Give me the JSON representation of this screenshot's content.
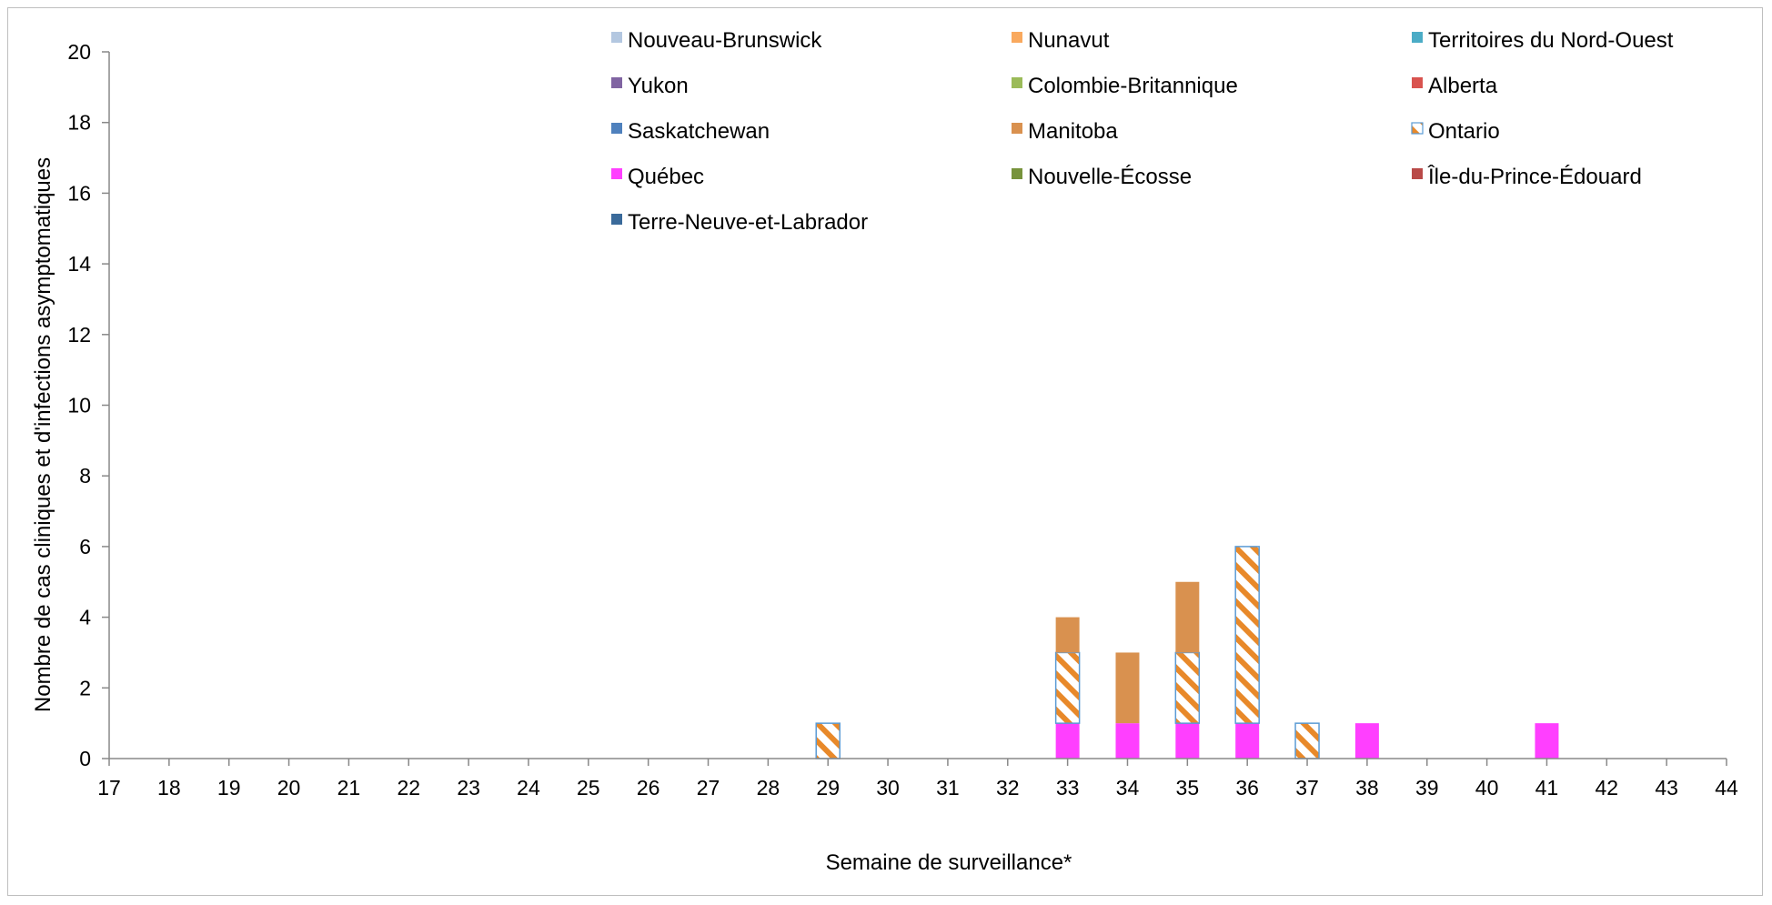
{
  "chart_data": {
    "type": "bar",
    "stacked": true,
    "xlabel": "Semaine de surveillance*",
    "ylabel": "Nombre de cas cliniques et d'infections asymptomatiques",
    "ylim": [
      0,
      20
    ],
    "yticks": [
      "0",
      "2",
      "4",
      "6",
      "8",
      "10",
      "12",
      "14",
      "16",
      "18",
      "20"
    ],
    "categories": [
      "17",
      "18",
      "19",
      "20",
      "21",
      "22",
      "23",
      "24",
      "25",
      "26",
      "27",
      "28",
      "29",
      "30",
      "31",
      "32",
      "33",
      "34",
      "35",
      "36",
      "37",
      "38",
      "39",
      "40",
      "41",
      "42",
      "43",
      "44"
    ],
    "legend_position": "top",
    "series": [
      {
        "name": "Nouveau-Brunswick",
        "color": "#b3c7e0",
        "pattern": "solid",
        "values": [
          0,
          0,
          0,
          0,
          0,
          0,
          0,
          0,
          0,
          0,
          0,
          0,
          0,
          0,
          0,
          0,
          0,
          0,
          0,
          0,
          0,
          0,
          0,
          0,
          0,
          0,
          0,
          0
        ]
      },
      {
        "name": "Nunavut",
        "color": "#f9a95e",
        "pattern": "solid",
        "values": [
          0,
          0,
          0,
          0,
          0,
          0,
          0,
          0,
          0,
          0,
          0,
          0,
          0,
          0,
          0,
          0,
          0,
          0,
          0,
          0,
          0,
          0,
          0,
          0,
          0,
          0,
          0,
          0
        ]
      },
      {
        "name": "Territoires du Nord-Ouest",
        "color": "#4bacc6",
        "pattern": "solid",
        "values": [
          0,
          0,
          0,
          0,
          0,
          0,
          0,
          0,
          0,
          0,
          0,
          0,
          0,
          0,
          0,
          0,
          0,
          0,
          0,
          0,
          0,
          0,
          0,
          0,
          0,
          0,
          0,
          0
        ]
      },
      {
        "name": "Yukon",
        "color": "#8064a2",
        "pattern": "solid",
        "values": [
          0,
          0,
          0,
          0,
          0,
          0,
          0,
          0,
          0,
          0,
          0,
          0,
          0,
          0,
          0,
          0,
          0,
          0,
          0,
          0,
          0,
          0,
          0,
          0,
          0,
          0,
          0,
          0
        ]
      },
      {
        "name": "Colombie-Britannique",
        "color": "#9bbb59",
        "pattern": "solid",
        "values": [
          0,
          0,
          0,
          0,
          0,
          0,
          0,
          0,
          0,
          0,
          0,
          0,
          0,
          0,
          0,
          0,
          0,
          0,
          0,
          0,
          0,
          0,
          0,
          0,
          0,
          0,
          0,
          0
        ]
      },
      {
        "name": "Alberta",
        "color": "#d9534f",
        "pattern": "solid",
        "values": [
          0,
          0,
          0,
          0,
          0,
          0,
          0,
          0,
          0,
          0,
          0,
          0,
          0,
          0,
          0,
          0,
          0,
          0,
          0,
          0,
          0,
          0,
          0,
          0,
          0,
          0,
          0,
          0
        ]
      },
      {
        "name": "Saskatchewan",
        "color": "#4f81bd",
        "pattern": "solid",
        "values": [
          0,
          0,
          0,
          0,
          0,
          0,
          0,
          0,
          0,
          0,
          0,
          0,
          0,
          0,
          0,
          0,
          0,
          0,
          0,
          0,
          0,
          0,
          0,
          0,
          0,
          0,
          0,
          0
        ]
      },
      {
        "name": "Manitoba",
        "color": "#d9914f",
        "pattern": "solid",
        "values": [
          0,
          0,
          0,
          0,
          0,
          0,
          0,
          0,
          0,
          0,
          0,
          0,
          0,
          0,
          0,
          0,
          1,
          2,
          2,
          0,
          0,
          0,
          0,
          0,
          0,
          0,
          0,
          0
        ]
      },
      {
        "name": "Ontario",
        "color": "#e8892a",
        "border": "#5b9bd5",
        "pattern": "hatch",
        "values": [
          0,
          0,
          0,
          0,
          0,
          0,
          0,
          0,
          0,
          0,
          0,
          0,
          1,
          0,
          0,
          0,
          2,
          0,
          2,
          5,
          1,
          0,
          0,
          0,
          0,
          0,
          0,
          0
        ]
      },
      {
        "name": "Québec",
        "color": "#ff3fff",
        "pattern": "solid",
        "values": [
          0,
          0,
          0,
          0,
          0,
          0,
          0,
          0,
          0,
          0,
          0,
          0,
          0,
          0,
          0,
          0,
          1,
          1,
          1,
          1,
          0,
          1,
          0,
          0,
          1,
          0,
          0,
          0
        ]
      },
      {
        "name": "Nouvelle-Écosse",
        "color": "#77933c",
        "pattern": "solid",
        "values": [
          0,
          0,
          0,
          0,
          0,
          0,
          0,
          0,
          0,
          0,
          0,
          0,
          0,
          0,
          0,
          0,
          0,
          0,
          0,
          0,
          0,
          0,
          0,
          0,
          0,
          0,
          0,
          0
        ]
      },
      {
        "name": "Île-du-Prince-Édouard",
        "color": "#b94a48",
        "pattern": "solid",
        "values": [
          0,
          0,
          0,
          0,
          0,
          0,
          0,
          0,
          0,
          0,
          0,
          0,
          0,
          0,
          0,
          0,
          0,
          0,
          0,
          0,
          0,
          0,
          0,
          0,
          0,
          0,
          0,
          0
        ]
      },
      {
        "name": "Terre-Neuve-et-Labrador",
        "color": "#3a6a9a",
        "pattern": "solid",
        "values": [
          0,
          0,
          0,
          0,
          0,
          0,
          0,
          0,
          0,
          0,
          0,
          0,
          0,
          0,
          0,
          0,
          0,
          0,
          0,
          0,
          0,
          0,
          0,
          0,
          0,
          0,
          0,
          0
        ]
      }
    ],
    "stack_order": [
      "Québec",
      "Ontario",
      "Manitoba"
    ]
  }
}
